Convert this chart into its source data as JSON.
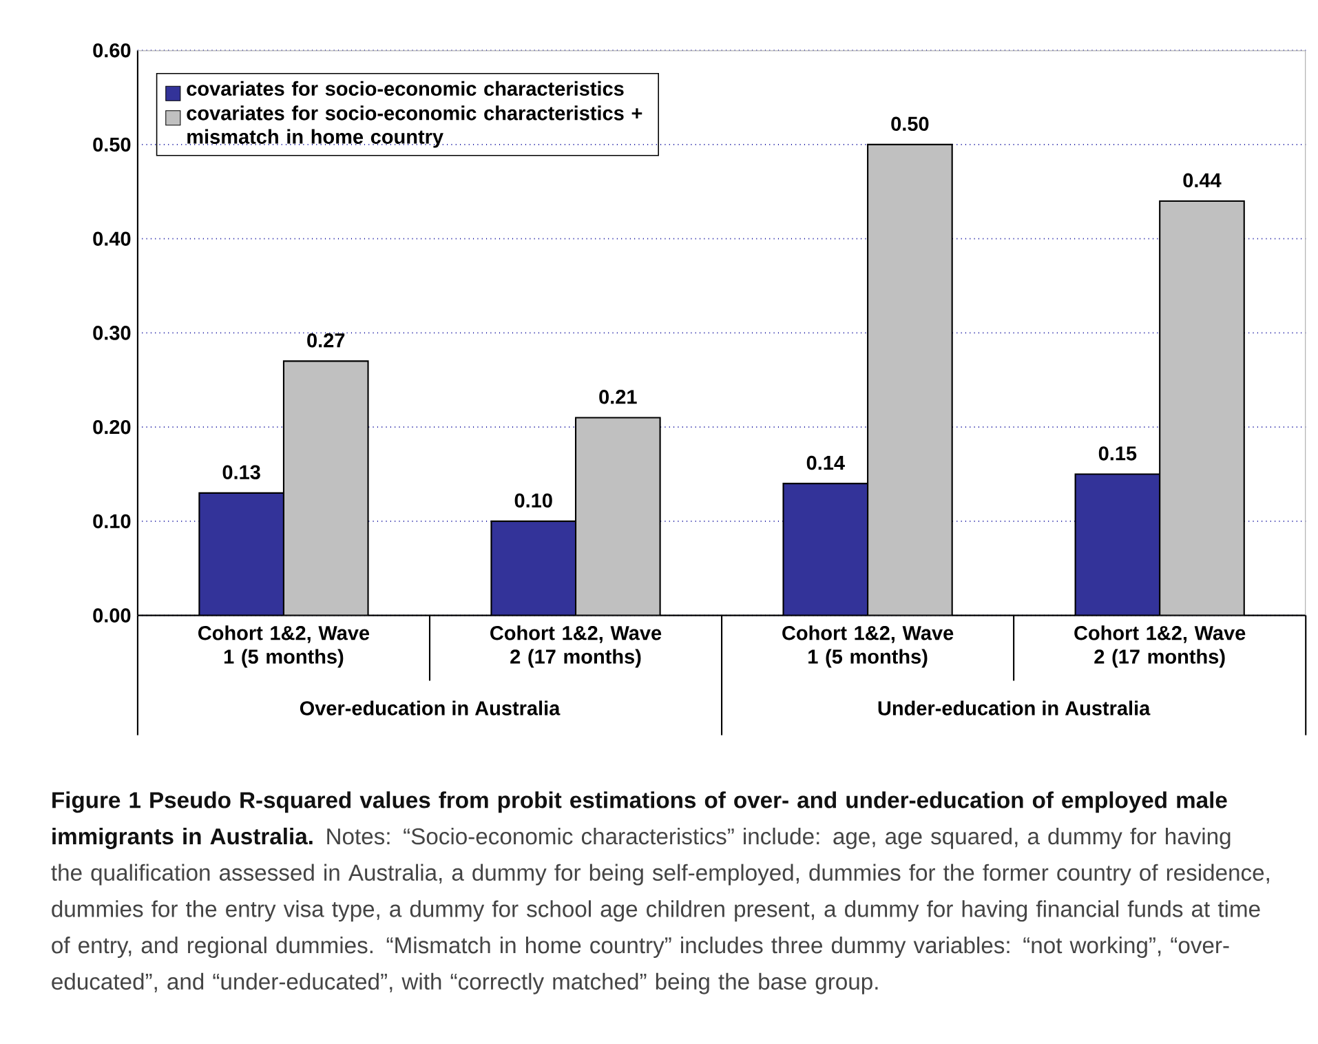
{
  "chart_data": {
    "type": "bar",
    "title": "Figure 1 Pseudo R-squared values from probit estimations of over- and under-education of employed male immigrants in Australia.",
    "categories": [
      "Cohort 1&2, Wave 1 (5 months)",
      "Cohort 1&2, Wave 2 (17 months)",
      "Cohort 1&2, Wave 1 (5 months)",
      "Cohort 1&2, Wave 2 (17 months)"
    ],
    "series": [
      {
        "name": "covariates for socio-economic characteristics",
        "color": "#333399",
        "values": [
          0.13,
          0.1,
          0.14,
          0.15
        ],
        "value_labels": [
          "0.13",
          "0.10",
          "0.14",
          "0.15"
        ]
      },
      {
        "name": "covariates for socio-economic characteristics + mismatch in home country",
        "color": "#c0c0c0",
        "values": [
          0.27,
          0.21,
          0.5,
          0.44
        ],
        "value_labels": [
          "0.27",
          "0.21",
          "0.50",
          "0.44"
        ]
      }
    ],
    "ylim": [
      0,
      0.6
    ],
    "yticks": [
      {
        "value": 0,
        "label": "0.00"
      },
      {
        "value": 0.1,
        "label": "0.10"
      },
      {
        "value": 0.2,
        "label": "0.20"
      },
      {
        "value": 0.3,
        "label": "0.30"
      },
      {
        "value": 0.4,
        "label": "0.40"
      },
      {
        "value": 0.5,
        "label": "0.50"
      },
      {
        "value": 0.6,
        "label": "0.60"
      }
    ],
    "grid": "y",
    "legend": "top left",
    "annotations": [
      "Notes: “Socio-economic characteristics” include: age, age squared, a dummy for having the qualification assessed in Australia, a dummy for being self-employed, dummies for the former country of residence, dummies for the entry visa type, a dummy for school age children present, a dummy for having financial funds at time of entry, and regional dummies. “Mismatch in home country” includes three dummy variables: “not working”, “over-educated”, and “under-educated”, with “correctly matched” being the base group.",
      "Over-education in Australia",
      "Under-education in Australia"
    ]
  }
}
